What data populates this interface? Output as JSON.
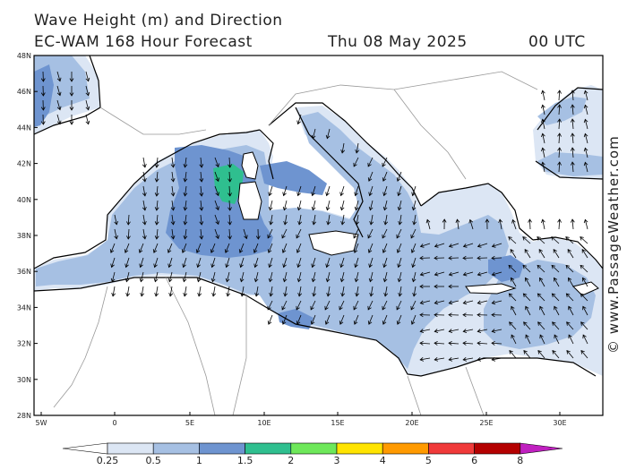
{
  "header": {
    "title": "Wave Height (m) and Direction",
    "model": "EC-WAM 168 Hour Forecast",
    "date": "Thu 08 May 2025",
    "time": "00 UTC"
  },
  "credit": "© www.PassageWeather.com",
  "axes": {
    "lat_labels": [
      "48N",
      "46N",
      "44N",
      "42N",
      "40N",
      "38N",
      "36N",
      "34N",
      "32N",
      "30N",
      "28N"
    ],
    "lon_labels": [
      "5W",
      "0",
      "5E",
      "10E",
      "15E",
      "20E",
      "25E",
      "30E"
    ]
  },
  "legend": {
    "labels": [
      "0.25",
      "0.5",
      "1",
      "1.5",
      "2",
      "3",
      "4",
      "5",
      "6",
      "8"
    ],
    "colors": [
      "#ffffff",
      "#dce6f4",
      "#a6c0e3",
      "#6e94d0",
      "#2fbf8f",
      "#6ee85a",
      "#ffe400",
      "#ff9a00",
      "#f03a3a",
      "#b40000",
      "#c020c0"
    ]
  },
  "colors": {
    "sea_calm": "#dce6f4",
    "sea_low": "#a6c0e3",
    "sea_mid": "#6e94d0",
    "sea_high": "#2fbf8f",
    "land": "#ffffff",
    "arrow": "#000000"
  }
}
